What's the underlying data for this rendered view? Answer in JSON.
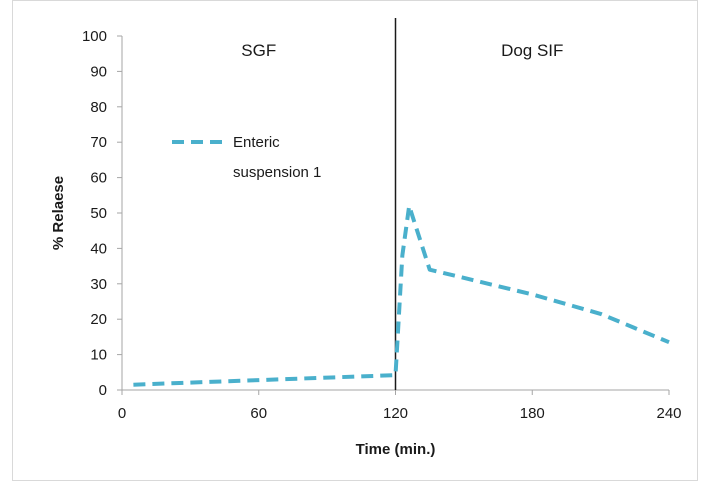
{
  "chart_data": {
    "type": "line",
    "xlabel": "Time (min.)",
    "ylabel": "% Relaese",
    "xlim": [
      0,
      240
    ],
    "ylim": [
      0,
      100
    ],
    "xticks": [
      0,
      60,
      120,
      180,
      240
    ],
    "yticks": [
      0,
      10,
      20,
      30,
      40,
      50,
      60,
      70,
      80,
      90,
      100
    ],
    "grid": false,
    "legend_position": "upper-left",
    "annotations": [
      {
        "text": "SGF",
        "x": 60,
        "y": 96
      },
      {
        "text": "Dog SIF",
        "x": 180,
        "y": 96
      }
    ],
    "divider_x": 120,
    "series": [
      {
        "name": "Enteric suspension 1",
        "name_lines": [
          "Enteric",
          "suspension 1"
        ],
        "color": "#4ab0cc",
        "style": "dashed",
        "x": [
          5,
          60,
          120,
          123,
          126,
          135,
          180,
          210,
          240
        ],
        "y": [
          1.5,
          2.8,
          4.2,
          38,
          52,
          34,
          27,
          21.5,
          13.5
        ]
      }
    ]
  }
}
